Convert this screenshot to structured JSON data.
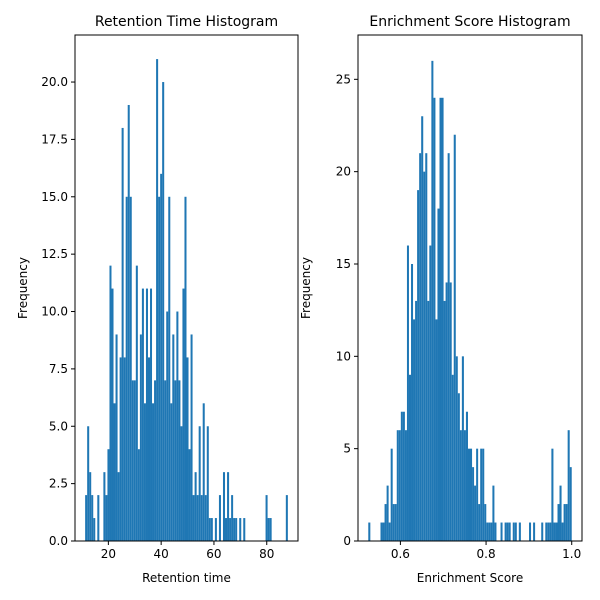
{
  "chart_data": [
    {
      "type": "histogram",
      "title": "Retention Time Histogram",
      "xlabel": "Retention time",
      "ylabel": "Frequency",
      "color": "#1f77b4",
      "bins": [
        11.2,
        11.97,
        12.74,
        13.5,
        14.27,
        15.04,
        15.81,
        16.58,
        17.34,
        18.11,
        18.88,
        19.65,
        20.42,
        21.18,
        21.95,
        22.72,
        23.49,
        24.26,
        25.02,
        25.79,
        26.56,
        27.33,
        28.1,
        28.86,
        29.63,
        30.4,
        31.17,
        31.94,
        32.7,
        33.47,
        34.24,
        35.01,
        35.78,
        36.54,
        37.31,
        38.08,
        38.85,
        39.62,
        40.38,
        41.15,
        41.92,
        42.69,
        43.46,
        44.22,
        44.99,
        45.76,
        46.53,
        47.3,
        48.06,
        48.83,
        49.6,
        50.37,
        51.14,
        51.9,
        52.67,
        53.44,
        54.21,
        54.98,
        55.74,
        56.51,
        57.28,
        58.05,
        58.82,
        59.58,
        60.35,
        61.12,
        61.89,
        62.66,
        63.42,
        64.19,
        64.96,
        65.73,
        66.5,
        67.26,
        68.03,
        68.8,
        69.57,
        70.34,
        71.1,
        71.87,
        72.64,
        73.41,
        74.18,
        74.94,
        75.71,
        76.48,
        77.25,
        78.02,
        78.78,
        79.55,
        80.32,
        81.09,
        81.86,
        82.62,
        83.39,
        84.16,
        84.93,
        85.7,
        86.46,
        87.23,
        88.0
      ],
      "counts": [
        2,
        5,
        3,
        2,
        1,
        0,
        2,
        0,
        0,
        3,
        2,
        4,
        12,
        11,
        6,
        9,
        3,
        8,
        18,
        8,
        15,
        19,
        15,
        7,
        7,
        12,
        4,
        9,
        11,
        6,
        11,
        8,
        11,
        6,
        7,
        21,
        15,
        16,
        20,
        7,
        10,
        15,
        6,
        9,
        7,
        10,
        7,
        5,
        11,
        15,
        8,
        4,
        9,
        2,
        3,
        2,
        5,
        2,
        6,
        2,
        5,
        1,
        1,
        0,
        1,
        0,
        2,
        0,
        3,
        1,
        3,
        1,
        2,
        1,
        1,
        0,
        1,
        0,
        1,
        0,
        0,
        0,
        0,
        0,
        0,
        0,
        0,
        0,
        0,
        2,
        1,
        1,
        0,
        0,
        0,
        0,
        0,
        0,
        0,
        2
      ],
      "xlim": [
        7.36,
        91.84
      ],
      "ylim": [
        0,
        22.05
      ],
      "xticks": [
        20,
        40,
        60,
        80
      ],
      "yticks": [
        {
          "value": 0,
          "label": "0.0"
        },
        2.5,
        {
          "value": 5,
          "label": "5.0"
        },
        7.5,
        {
          "value": 10,
          "label": "10.0"
        },
        12.5,
        {
          "value": 15,
          "label": "15.0"
        },
        17.5,
        {
          "value": 20,
          "label": "20.0"
        }
      ]
    },
    {
      "type": "histogram",
      "title": "Enrichment Score Histogram",
      "xlabel": "Enrichment Score",
      "ylabel": "Frequency",
      "color": "#1f77b4",
      "bins": [
        0.525,
        0.5298,
        0.5345,
        0.5393,
        0.544,
        0.5488,
        0.5535,
        0.5583,
        0.563,
        0.5678,
        0.5725,
        0.5773,
        0.582,
        0.5868,
        0.5915,
        0.5963,
        0.601,
        0.6058,
        0.6105,
        0.6153,
        0.62,
        0.6248,
        0.6295,
        0.6343,
        0.639,
        0.6438,
        0.6485,
        0.6533,
        0.658,
        0.6628,
        0.6675,
        0.6723,
        0.677,
        0.6818,
        0.6865,
        0.6913,
        0.696,
        0.7008,
        0.7055,
        0.7103,
        0.715,
        0.7198,
        0.7245,
        0.7293,
        0.734,
        0.7388,
        0.7435,
        0.7483,
        0.753,
        0.7578,
        0.7625,
        0.7673,
        0.772,
        0.7768,
        0.7815,
        0.7863,
        0.791,
        0.7958,
        0.8005,
        0.8053,
        0.81,
        0.8148,
        0.8195,
        0.8243,
        0.829,
        0.8338,
        0.8385,
        0.8433,
        0.848,
        0.8528,
        0.8575,
        0.8623,
        0.867,
        0.8718,
        0.8765,
        0.8813,
        0.886,
        0.8908,
        0.8955,
        0.9003,
        0.905,
        0.9098,
        0.9145,
        0.9193,
        0.924,
        0.9288,
        0.9335,
        0.9383,
        0.943,
        0.9478,
        0.9525,
        0.9573,
        0.962,
        0.9668,
        0.9715,
        0.9763,
        0.981,
        0.9858,
        0.9905,
        0.9953,
        1.0
      ],
      "counts": [
        1,
        0,
        0,
        0,
        0,
        0,
        1,
        1,
        2,
        3,
        1,
        5,
        2,
        2,
        6,
        6,
        7,
        7,
        6,
        16,
        9,
        15,
        12,
        13,
        19,
        21,
        23,
        20,
        21,
        13,
        16,
        26,
        24,
        12,
        18,
        24,
        24,
        13,
        14,
        21,
        14,
        9,
        22,
        10,
        8,
        6,
        10,
        6,
        7,
        5,
        5,
        4,
        3,
        5,
        2,
        5,
        5,
        2,
        1,
        1,
        1,
        3,
        1,
        0,
        0,
        1,
        0,
        1,
        1,
        1,
        0,
        1,
        1,
        0,
        1,
        0,
        0,
        0,
        0,
        1,
        0,
        1,
        0,
        0,
        0,
        1,
        0,
        1,
        1,
        1,
        5,
        1,
        1,
        2,
        3,
        1,
        2,
        2,
        6,
        4
      ],
      "xlim": [
        0.501,
        1.024
      ],
      "ylim": [
        0,
        27.4
      ],
      "xticks": [
        0.6,
        0.8,
        {
          "value": 1,
          "label": "1.0"
        }
      ],
      "yticks": [
        0,
        5,
        10,
        15,
        20,
        25
      ]
    }
  ]
}
